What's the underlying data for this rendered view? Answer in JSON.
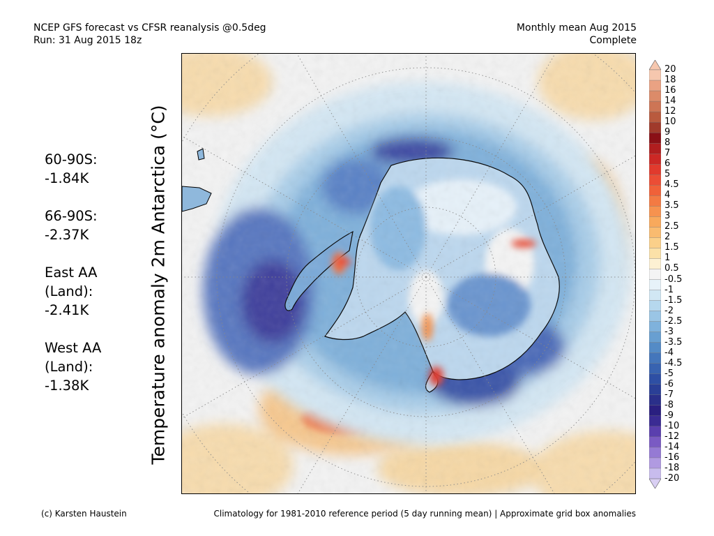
{
  "header": {
    "left_line1": "NCEP GFS forecast vs CFSR reanalysis @0.5deg",
    "left_line2": "Run: 31 Aug 2015 18z",
    "right_line1": "Monthly mean Aug 2015",
    "right_line2": "Complete"
  },
  "y_axis_title": "Temperature anomaly 2m Antarctica (°C)",
  "stats": [
    {
      "lines": [
        "60-90S:",
        " -1.84K"
      ]
    },
    {
      "lines": [
        "66-90S:",
        " -2.37K"
      ]
    },
    {
      "lines": [
        "East AA",
        " (Land):",
        " -2.41K"
      ]
    },
    {
      "lines": [
        "West AA",
        " (Land):",
        " -1.38K"
      ]
    }
  ],
  "colorbar": {
    "labels": [
      "20",
      "18",
      "16",
      "14",
      "12",
      "10",
      "9",
      "8",
      "7",
      "6",
      "5",
      "4.5",
      "4",
      "3.5",
      "3",
      "2.5",
      "2",
      "1.5",
      "1",
      "0.5",
      "-0.5",
      "-1",
      "-1.5",
      "-2",
      "-2.5",
      "-3",
      "-3.5",
      "-4",
      "-4.5",
      "-5",
      "-6",
      "-7",
      "-8",
      "-9",
      "-10",
      "-12",
      "-14",
      "-16",
      "-18",
      "-20"
    ],
    "colors": [
      "#f6c7ae",
      "#eaa283",
      "#dc8b69",
      "#cd7555",
      "#b95a3e",
      "#a03a2b",
      "#8a1016",
      "#b01e1f",
      "#cc2825",
      "#e13a2d",
      "#eb4d35",
      "#f06139",
      "#f37a43",
      "#f6924f",
      "#f8a95c",
      "#f9bb70",
      "#fbd08a",
      "#fbe1a8",
      "#fdf1d3",
      "#f4f4f4",
      "#e7f2f9",
      "#d1e7f4",
      "#b6d8ee",
      "#9ac5e5",
      "#7fb2dc",
      "#689fd1",
      "#548bc6",
      "#4476bb",
      "#3863b0",
      "#2e4fa4",
      "#2a3f96",
      "#2a2f8a",
      "#2a1f80",
      "#3a2b93",
      "#5a3fae",
      "#7a5ac3",
      "#957ad4",
      "#b09ae1",
      "#c8bced"
    ]
  },
  "footer": {
    "left": "(c) Karsten Haustein",
    "right": "Climatology for 1981-2010 reference period (5 day running mean) | Approximate grid box anomalies"
  }
}
